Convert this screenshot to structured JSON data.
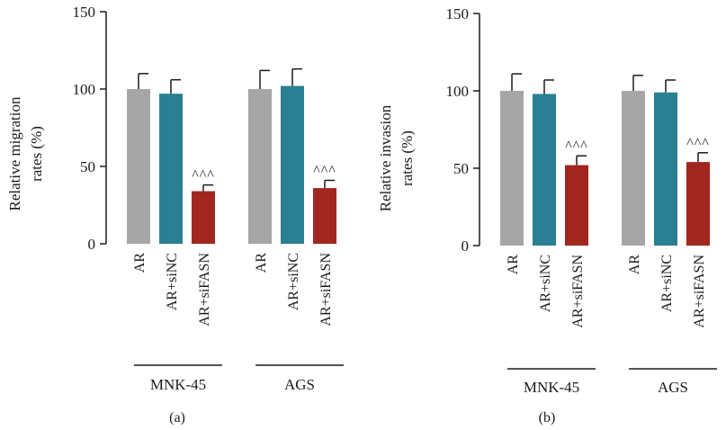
{
  "chart_data": [
    {
      "type": "bar",
      "panel_label": "(a)",
      "ylabel": [
        "Relative migration",
        "rates (%)"
      ],
      "ylim": [
        0,
        150
      ],
      "yticks": [
        "0",
        "50",
        "100",
        "150"
      ],
      "groups": [
        "MNK-45",
        "AGS"
      ],
      "categories": [
        "AR",
        "AR+siNC",
        "AR+siFASN"
      ],
      "values": [
        [
          100,
          97,
          34
        ],
        [
          100,
          102,
          36
        ]
      ],
      "errors": [
        [
          10,
          9,
          4
        ],
        [
          12,
          11,
          5
        ]
      ],
      "significance": [
        [
          "",
          "",
          "^^^"
        ],
        [
          "",
          "",
          "^^^"
        ]
      ]
    },
    {
      "type": "bar",
      "panel_label": "(b)",
      "ylabel": [
        "Relative invasion",
        "rates (%)"
      ],
      "ylim": [
        0,
        150
      ],
      "yticks": [
        "0",
        "50",
        "100",
        "150"
      ],
      "groups": [
        "MNK-45",
        "AGS"
      ],
      "categories": [
        "AR",
        "AR+siNC",
        "AR+siFASN"
      ],
      "values": [
        [
          100,
          98,
          52
        ],
        [
          100,
          99,
          54
        ]
      ],
      "errors": [
        [
          11,
          9,
          6
        ],
        [
          10,
          8,
          6
        ]
      ],
      "significance": [
        [
          "",
          "",
          "^^^"
        ],
        [
          "",
          "",
          "^^^"
        ]
      ]
    }
  ],
  "colors": {
    "bars": [
      "#a7a5a7",
      "#2a7f93",
      "#a1261f"
    ],
    "axis": "#1a1a1a"
  }
}
